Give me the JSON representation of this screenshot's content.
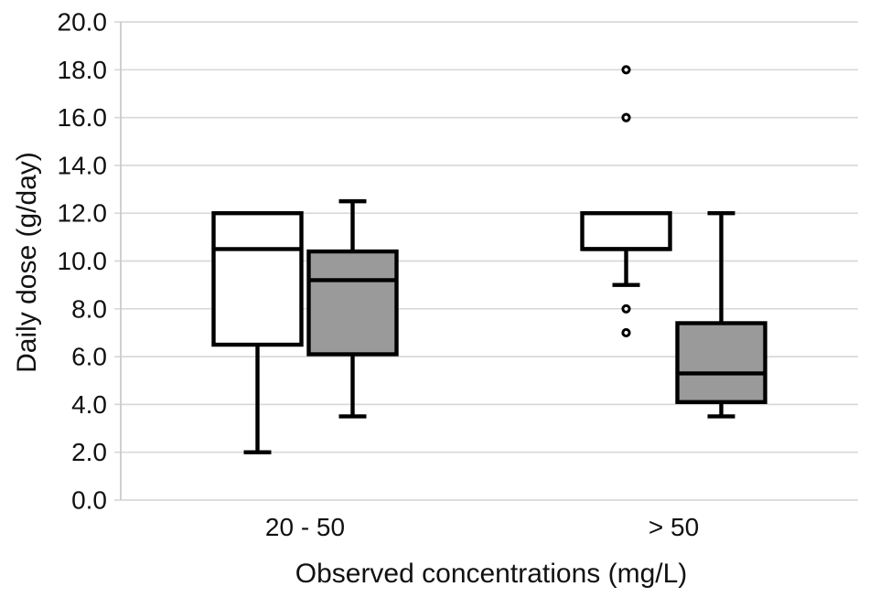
{
  "figure": {
    "background": "#ffffff"
  },
  "chart_data": {
    "type": "boxplot",
    "title": "",
    "xlabel": "Observed concentrations (mg/L)",
    "ylabel": "Daily dose (g/day)",
    "ylim": [
      0,
      20
    ],
    "yticks": [
      {
        "value": 0,
        "label": "0.0"
      },
      {
        "value": 2,
        "label": "2.0"
      },
      {
        "value": 4,
        "label": "4.0"
      },
      {
        "value": 6,
        "label": "6.0"
      },
      {
        "value": 8,
        "label": "8.0"
      },
      {
        "value": 10,
        "label": "10.0"
      },
      {
        "value": 12,
        "label": "12.0"
      },
      {
        "value": 14,
        "label": "14.0"
      },
      {
        "value": 16,
        "label": "16.0"
      },
      {
        "value": 18,
        "label": "18.0"
      },
      {
        "value": 20,
        "label": "20.0"
      }
    ],
    "categories": [
      "20 - 50",
      "> 50"
    ],
    "grid": "horizontal",
    "legend": "none",
    "colors": {
      "box_line": "#000000",
      "white_fill": "#ffffff",
      "gray_fill": "#9a9a9a",
      "gridline": "#d9d9d9",
      "axis_line": "#c8c8c8",
      "text": "#111111"
    },
    "series": [
      {
        "name": "white",
        "fill": "#ffffff",
        "boxes": [
          {
            "category": "20 - 50",
            "low": 2.0,
            "q1": 6.5,
            "median": 10.5,
            "q3": 12.0,
            "high": 12.0,
            "outliers": []
          },
          {
            "category": "> 50",
            "low": 9.0,
            "q1": 10.5,
            "median": 10.5,
            "q3": 12.0,
            "high": 12.0,
            "outliers": [
              18.0,
              16.0,
              8.0,
              7.0
            ]
          }
        ]
      },
      {
        "name": "gray",
        "fill": "#9a9a9a",
        "boxes": [
          {
            "category": "20 - 50",
            "low": 3.5,
            "q1": 6.1,
            "median": 9.2,
            "q3": 10.4,
            "high": 12.5,
            "outliers": []
          },
          {
            "category": "> 50",
            "low": 3.5,
            "q1": 4.1,
            "median": 5.3,
            "q3": 7.4,
            "high": 12.0,
            "outliers": []
          }
        ]
      }
    ]
  }
}
